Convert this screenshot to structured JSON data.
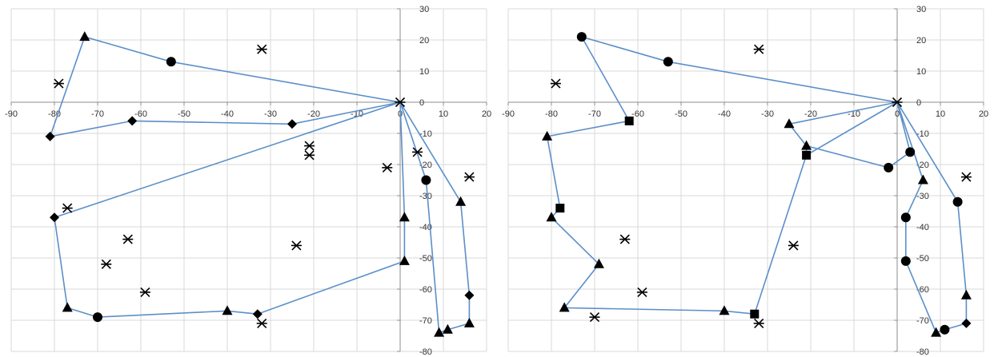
{
  "chart_data": [
    {
      "type": "scatter",
      "title": "",
      "xlabel": "",
      "ylabel": "",
      "xlim": [
        -90,
        20
      ],
      "ylim": [
        -80,
        30
      ],
      "x_ticks": [
        "-90",
        "-80",
        "-70",
        "-60",
        "-50",
        "-40",
        "-30",
        "-20",
        "-10",
        "0",
        "10",
        "20"
      ],
      "y_ticks": [
        "30",
        "20",
        "10",
        "0",
        "-10",
        "-20",
        "-30",
        "-40",
        "-50",
        "-60",
        "-70",
        "-80"
      ],
      "grid": true,
      "legend": "none",
      "line_color": "#5b8fc9",
      "marker_color": "#000000",
      "route": [
        [
          0,
          0
        ],
        [
          -53,
          13
        ],
        [
          -73,
          21
        ],
        [
          -81,
          -11
        ],
        [
          -62,
          -6
        ],
        [
          -25,
          -7
        ],
        [
          0,
          0
        ],
        [
          -80,
          -37
        ],
        [
          -77,
          -66
        ],
        [
          -70,
          -69
        ],
        [
          -40,
          -67
        ],
        [
          -33,
          -68
        ],
        [
          1,
          -51
        ],
        [
          1,
          -37
        ],
        [
          0,
          0
        ],
        [
          6,
          -25
        ],
        [
          9,
          -74
        ],
        [
          11,
          -73
        ],
        [
          16,
          -71
        ],
        [
          16,
          -62
        ],
        [
          14,
          -32
        ],
        [
          0,
          0
        ]
      ],
      "points": [
        {
          "x": 0,
          "y": 0,
          "marker": "star"
        },
        {
          "x": -53,
          "y": 13,
          "marker": "circle"
        },
        {
          "x": -73,
          "y": 21,
          "marker": "triangle"
        },
        {
          "x": -81,
          "y": -11,
          "marker": "diamond"
        },
        {
          "x": -62,
          "y": -6,
          "marker": "diamond"
        },
        {
          "x": -25,
          "y": -7,
          "marker": "diamond"
        },
        {
          "x": -80,
          "y": -37,
          "marker": "diamond"
        },
        {
          "x": -77,
          "y": -66,
          "marker": "triangle"
        },
        {
          "x": -70,
          "y": -69,
          "marker": "circle"
        },
        {
          "x": -40,
          "y": -67,
          "marker": "triangle"
        },
        {
          "x": -33,
          "y": -68,
          "marker": "diamond"
        },
        {
          "x": 1,
          "y": -51,
          "marker": "triangle"
        },
        {
          "x": 1,
          "y": -37,
          "marker": "triangle"
        },
        {
          "x": 6,
          "y": -25,
          "marker": "circle"
        },
        {
          "x": 9,
          "y": -74,
          "marker": "triangle"
        },
        {
          "x": 11,
          "y": -73,
          "marker": "triangle"
        },
        {
          "x": 16,
          "y": -71,
          "marker": "triangle"
        },
        {
          "x": 16,
          "y": -62,
          "marker": "diamond"
        },
        {
          "x": 14,
          "y": -32,
          "marker": "triangle"
        },
        {
          "x": -79,
          "y": 6,
          "marker": "star"
        },
        {
          "x": -32,
          "y": 17,
          "marker": "star"
        },
        {
          "x": -21,
          "y": -14,
          "marker": "star"
        },
        {
          "x": -21,
          "y": -17,
          "marker": "star"
        },
        {
          "x": -3,
          "y": -21,
          "marker": "star"
        },
        {
          "x": 4,
          "y": -16,
          "marker": "star"
        },
        {
          "x": 16,
          "y": -24,
          "marker": "star"
        },
        {
          "x": -77,
          "y": -34,
          "marker": "star"
        },
        {
          "x": -63,
          "y": -44,
          "marker": "star"
        },
        {
          "x": -68,
          "y": -52,
          "marker": "star"
        },
        {
          "x": -59,
          "y": -61,
          "marker": "star"
        },
        {
          "x": -24,
          "y": -46,
          "marker": "star"
        },
        {
          "x": -32,
          "y": -71,
          "marker": "star"
        }
      ]
    },
    {
      "type": "scatter",
      "title": "",
      "xlabel": "",
      "ylabel": "",
      "xlim": [
        -90,
        20
      ],
      "ylim": [
        -80,
        30
      ],
      "x_ticks": [
        "-90",
        "-80",
        "-70",
        "-60",
        "-50",
        "-40",
        "-30",
        "-20",
        "-10",
        "0",
        "10",
        "20"
      ],
      "y_ticks": [
        "30",
        "20",
        "10",
        "0",
        "-10",
        "-20",
        "-30",
        "-40",
        "-50",
        "-60",
        "-70",
        "-80"
      ],
      "grid": true,
      "legend": "none",
      "line_color": "#5b8fc9",
      "marker_color": "#000000",
      "route": [
        [
          0,
          0
        ],
        [
          -53,
          13
        ],
        [
          -73,
          21
        ],
        [
          -62,
          -6
        ],
        [
          -81,
          -11
        ],
        [
          -78,
          -34
        ],
        [
          -80,
          -37
        ],
        [
          -69,
          -52
        ],
        [
          -77,
          -66
        ],
        [
          -40,
          -67
        ],
        [
          -33,
          -68
        ],
        [
          -21,
          -17
        ],
        [
          -21,
          -14
        ],
        [
          -25,
          -7
        ],
        [
          0,
          0
        ],
        [
          -21,
          -17
        ],
        [
          -21,
          -14
        ],
        [
          -2,
          -21
        ],
        [
          3,
          -16
        ],
        [
          0,
          0
        ],
        [
          6,
          -25
        ],
        [
          2,
          -37
        ],
        [
          2,
          -51
        ],
        [
          9,
          -74
        ],
        [
          11,
          -73
        ],
        [
          16,
          -71
        ],
        [
          16,
          -62
        ],
        [
          14,
          -32
        ],
        [
          0,
          0
        ]
      ],
      "points": [
        {
          "x": 0,
          "y": 0,
          "marker": "star"
        },
        {
          "x": -53,
          "y": 13,
          "marker": "circle"
        },
        {
          "x": -73,
          "y": 21,
          "marker": "circle"
        },
        {
          "x": -62,
          "y": -6,
          "marker": "square"
        },
        {
          "x": -81,
          "y": -11,
          "marker": "triangle"
        },
        {
          "x": -78,
          "y": -34,
          "marker": "square"
        },
        {
          "x": -80,
          "y": -37,
          "marker": "triangle"
        },
        {
          "x": -69,
          "y": -52,
          "marker": "triangle"
        },
        {
          "x": -77,
          "y": -66,
          "marker": "triangle"
        },
        {
          "x": -40,
          "y": -67,
          "marker": "triangle"
        },
        {
          "x": -33,
          "y": -68,
          "marker": "square"
        },
        {
          "x": -21,
          "y": -17,
          "marker": "square"
        },
        {
          "x": -21,
          "y": -14,
          "marker": "triangle"
        },
        {
          "x": -25,
          "y": -7,
          "marker": "triangle"
        },
        {
          "x": -2,
          "y": -21,
          "marker": "circle"
        },
        {
          "x": 3,
          "y": -16,
          "marker": "circle"
        },
        {
          "x": 6,
          "y": -25,
          "marker": "triangle"
        },
        {
          "x": 2,
          "y": -37,
          "marker": "circle"
        },
        {
          "x": 2,
          "y": -51,
          "marker": "circle"
        },
        {
          "x": 9,
          "y": -74,
          "marker": "triangle"
        },
        {
          "x": 11,
          "y": -73,
          "marker": "circle"
        },
        {
          "x": 16,
          "y": -71,
          "marker": "diamond"
        },
        {
          "x": 16,
          "y": -62,
          "marker": "triangle"
        },
        {
          "x": 14,
          "y": -32,
          "marker": "circle"
        },
        {
          "x": -79,
          "y": 6,
          "marker": "star"
        },
        {
          "x": -32,
          "y": 17,
          "marker": "star"
        },
        {
          "x": 16,
          "y": -24,
          "marker": "star"
        },
        {
          "x": -63,
          "y": -44,
          "marker": "star"
        },
        {
          "x": -24,
          "y": -46,
          "marker": "star"
        },
        {
          "x": -59,
          "y": -61,
          "marker": "star"
        },
        {
          "x": -70,
          "y": -69,
          "marker": "star"
        },
        {
          "x": -32,
          "y": -71,
          "marker": "star"
        }
      ]
    }
  ]
}
